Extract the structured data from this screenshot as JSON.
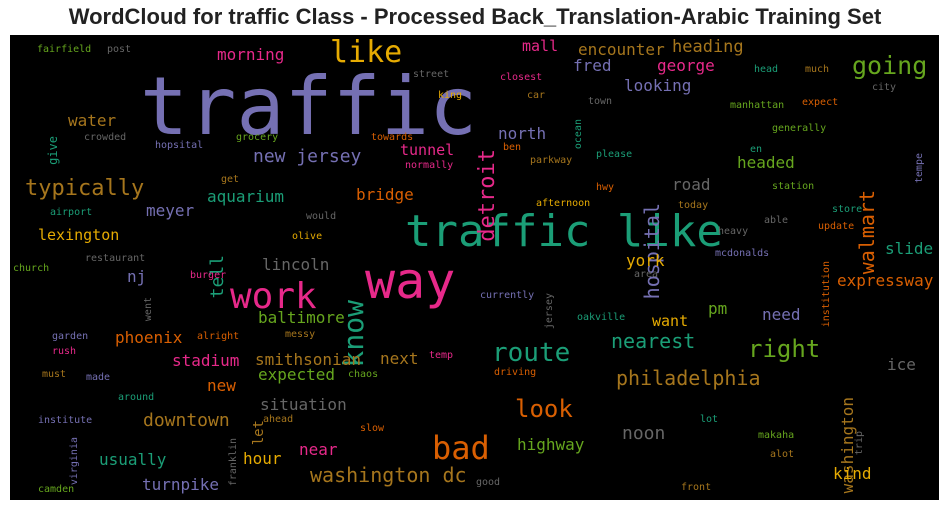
{
  "chart_data": {
    "type": "wordcloud",
    "title": "WordCloud for traffic Class - Processed Back_Translation-Arabic Training Set",
    "background": "#000000",
    "words": [
      {
        "text": "traffic",
        "color": "#7570b3"
      },
      {
        "text": "traffic like",
        "color": "#1b9e77"
      },
      {
        "text": "way",
        "color": "#e7298a"
      },
      {
        "text": "work",
        "color": "#e7298a"
      },
      {
        "text": "like",
        "color": "#e6ab02"
      },
      {
        "text": "know",
        "color": "#1b9e77"
      },
      {
        "text": "bad",
        "color": "#d95f02"
      },
      {
        "text": "route",
        "color": "#1b9e77"
      },
      {
        "text": "going",
        "color": "#66a61e"
      },
      {
        "text": "right",
        "color": "#66a61e"
      },
      {
        "text": "look",
        "color": "#d95f02"
      },
      {
        "text": "typically",
        "color": "#a6761d"
      },
      {
        "text": "detroit",
        "color": "#e7298a"
      },
      {
        "text": "hospital",
        "color": "#7570b3"
      },
      {
        "text": "walmart",
        "color": "#d95f02"
      },
      {
        "text": "philadelphia",
        "color": "#a6761d"
      },
      {
        "text": "washington dc",
        "color": "#a6761d"
      },
      {
        "text": "nearest",
        "color": "#1b9e77"
      },
      {
        "text": "new jersey",
        "color": "#7570b3"
      },
      {
        "text": "morning",
        "color": "#e7298a"
      },
      {
        "text": "heading",
        "color": "#a6761d"
      },
      {
        "text": "encounter",
        "color": "#a6761d"
      },
      {
        "text": "mall",
        "color": "#e7298a"
      },
      {
        "text": "fred",
        "color": "#7570b3"
      },
      {
        "text": "george",
        "color": "#e7298a"
      },
      {
        "text": "looking",
        "color": "#7570b3"
      },
      {
        "text": "north",
        "color": "#7570b3"
      },
      {
        "text": "tunnel",
        "color": "#e7298a"
      },
      {
        "text": "water",
        "color": "#a6761d"
      },
      {
        "text": "bridge",
        "color": "#d95f02"
      },
      {
        "text": "aquarium",
        "color": "#1b9e77"
      },
      {
        "text": "meyer",
        "color": "#7570b3"
      },
      {
        "text": "lexington",
        "color": "#e6ab02"
      },
      {
        "text": "tell",
        "color": "#1b9e77"
      },
      {
        "text": "road",
        "color": "#666666"
      },
      {
        "text": "headed",
        "color": "#66a61e"
      },
      {
        "text": "lincoln",
        "color": "#666666"
      },
      {
        "text": "york",
        "color": "#e6ab02"
      },
      {
        "text": "slide",
        "color": "#1b9e77"
      },
      {
        "text": "expressway",
        "color": "#d95f02"
      },
      {
        "text": "washington",
        "color": "#a6761d"
      },
      {
        "text": "ice",
        "color": "#666666"
      },
      {
        "text": "need",
        "color": "#7570b3"
      },
      {
        "text": "pm",
        "color": "#66a61e"
      },
      {
        "text": "want",
        "color": "#e6ab02"
      },
      {
        "text": "baltimore",
        "color": "#66a61e"
      },
      {
        "text": "phoenix",
        "color": "#d95f02"
      },
      {
        "text": "stadium",
        "color": "#e7298a"
      },
      {
        "text": "smithsonian",
        "color": "#a6761d"
      },
      {
        "text": "next",
        "color": "#a6761d"
      },
      {
        "text": "expected",
        "color": "#66a61e"
      },
      {
        "text": "new",
        "color": "#d95f02"
      },
      {
        "text": "downtown",
        "color": "#a6761d"
      },
      {
        "text": "situation",
        "color": "#666666"
      },
      {
        "text": "noon",
        "color": "#666666"
      },
      {
        "text": "highway",
        "color": "#66a61e"
      },
      {
        "text": "near",
        "color": "#e7298a"
      },
      {
        "text": "hour",
        "color": "#e6ab02"
      },
      {
        "text": "usually",
        "color": "#1b9e77"
      },
      {
        "text": "turnpike",
        "color": "#7570b3"
      },
      {
        "text": "kind",
        "color": "#e6ab02"
      },
      {
        "text": "nj",
        "color": "#7570b3"
      },
      {
        "text": "let",
        "color": "#a6761d"
      },
      {
        "text": "fairfield",
        "color": "#66a61e"
      },
      {
        "text": "post",
        "color": "#666666"
      },
      {
        "text": "street",
        "color": "#666666"
      },
      {
        "text": "king",
        "color": "#e6ab02"
      },
      {
        "text": "closest",
        "color": "#e7298a"
      },
      {
        "text": "car",
        "color": "#a6761d"
      },
      {
        "text": "ocean",
        "color": "#1b9e77"
      },
      {
        "text": "town",
        "color": "#666666"
      },
      {
        "text": "head",
        "color": "#1b9e77"
      },
      {
        "text": "much",
        "color": "#a6761d"
      },
      {
        "text": "city",
        "color": "#666666"
      },
      {
        "text": "manhattan",
        "color": "#66a61e"
      },
      {
        "text": "expect",
        "color": "#d95f02"
      },
      {
        "text": "generally",
        "color": "#66a61e"
      },
      {
        "text": "give",
        "color": "#1b9e77"
      },
      {
        "text": "crowded",
        "color": "#666666"
      },
      {
        "text": "grocery",
        "color": "#66a61e"
      },
      {
        "text": "towards",
        "color": "#d95f02"
      },
      {
        "text": "hopsital",
        "color": "#7570b3"
      },
      {
        "text": "ben",
        "color": "#d95f02"
      },
      {
        "text": "please",
        "color": "#1b9e77"
      },
      {
        "text": "en",
        "color": "#1b9e77"
      },
      {
        "text": "normally",
        "color": "#e7298a"
      },
      {
        "text": "parkway",
        "color": "#a6761d"
      },
      {
        "text": "tempe",
        "color": "#7570b3"
      },
      {
        "text": "station",
        "color": "#66a61e"
      },
      {
        "text": "get",
        "color": "#a6761d"
      },
      {
        "text": "hwy",
        "color": "#d95f02"
      },
      {
        "text": "airport",
        "color": "#1b9e77"
      },
      {
        "text": "afternoon",
        "color": "#e6ab02"
      },
      {
        "text": "today",
        "color": "#a6761d"
      },
      {
        "text": "would",
        "color": "#666666"
      },
      {
        "text": "able",
        "color": "#666666"
      },
      {
        "text": "store",
        "color": "#1b9e77"
      },
      {
        "text": "heavy",
        "color": "#666666"
      },
      {
        "text": "olive",
        "color": "#e6ab02"
      },
      {
        "text": "update",
        "color": "#d95f02"
      },
      {
        "text": "restaurant",
        "color": "#666666"
      },
      {
        "text": "mcdonalds",
        "color": "#7570b3"
      },
      {
        "text": "church",
        "color": "#66a61e"
      },
      {
        "text": "burger",
        "color": "#e7298a"
      },
      {
        "text": "area",
        "color": "#666666"
      },
      {
        "text": "institution",
        "color": "#d95f02"
      },
      {
        "text": "went",
        "color": "#666666"
      },
      {
        "text": "currently",
        "color": "#7570b3"
      },
      {
        "text": "jersey",
        "color": "#666666"
      },
      {
        "text": "oakville",
        "color": "#1b9e77"
      },
      {
        "text": "garden",
        "color": "#7570b3"
      },
      {
        "text": "alright",
        "color": "#d95f02"
      },
      {
        "text": "messy",
        "color": "#a6761d"
      },
      {
        "text": "rush",
        "color": "#e7298a"
      },
      {
        "text": "temp",
        "color": "#e7298a"
      },
      {
        "text": "must",
        "color": "#a6761d"
      },
      {
        "text": "made",
        "color": "#7570b3"
      },
      {
        "text": "chaos",
        "color": "#66a61e"
      },
      {
        "text": "driving",
        "color": "#d95f02"
      },
      {
        "text": "around",
        "color": "#1b9e77"
      },
      {
        "text": "institute",
        "color": "#7570b3"
      },
      {
        "text": "ahead",
        "color": "#a6761d"
      },
      {
        "text": "slow",
        "color": "#d95f02"
      },
      {
        "text": "lot",
        "color": "#1b9e77"
      },
      {
        "text": "virginia",
        "color": "#7570b3"
      },
      {
        "text": "franklin",
        "color": "#666666"
      },
      {
        "text": "makaha",
        "color": "#66a61e"
      },
      {
        "text": "trip",
        "color": "#666666"
      },
      {
        "text": "alot",
        "color": "#a6761d"
      },
      {
        "text": "camden",
        "color": "#66a61e"
      },
      {
        "text": "good",
        "color": "#666666"
      },
      {
        "text": "front",
        "color": "#a6761d"
      }
    ]
  }
}
